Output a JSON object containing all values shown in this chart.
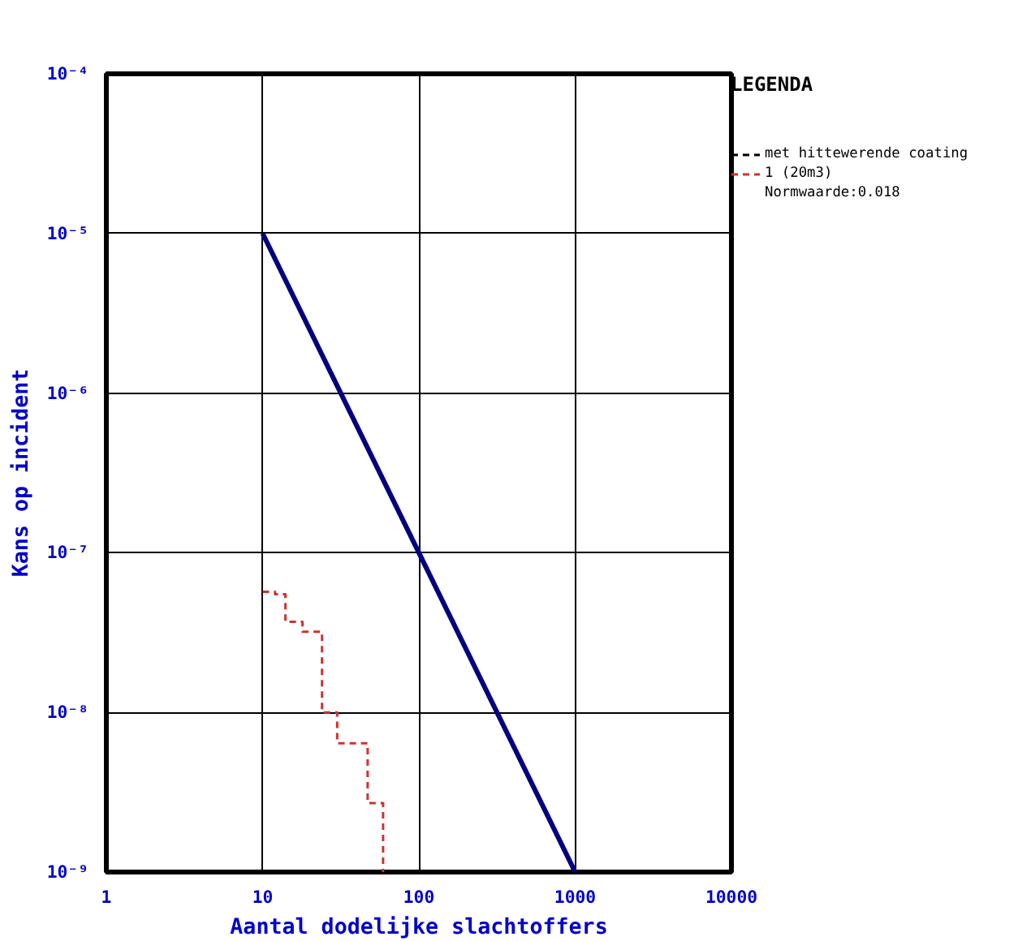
{
  "chart_data": {
    "type": "line",
    "xlabel": "Aantal dodelijke slachtoffers",
    "ylabel": "Kans op incident",
    "legend_title": "LEGENDA",
    "log": "xy",
    "grid": true,
    "legend": "top right",
    "xlim": [
      1,
      10000
    ],
    "xticks": [
      1,
      10,
      100,
      1000,
      10000
    ],
    "ylim": [
      1e-09,
      0.0001
    ],
    "yticks": [
      {
        "value": 1e-09,
        "label": "10⁻⁹"
      },
      {
        "value": 1e-08,
        "label": "10⁻⁸"
      },
      {
        "value": 1e-07,
        "label": "10⁻⁷"
      },
      {
        "value": 1e-06,
        "label": "10⁻⁶"
      },
      {
        "value": 1e-05,
        "label": "10⁻⁵"
      },
      {
        "value": 0.0001,
        "label": "10⁻⁴"
      }
    ],
    "series": [
      {
        "color": "#000080",
        "line_style": "solid",
        "x": [
          10,
          100,
          1000
        ],
        "values": [
          1e-05,
          1e-07,
          1e-09
        ]
      },
      {
        "name": "met hittewerende coating",
        "color": "#000000",
        "line_style": "dashed"
      },
      {
        "type": "step",
        "name": "1 (20m3)",
        "color": "#cc3333",
        "line_style": "dashed",
        "x": [
          10,
          12,
          14,
          18,
          24,
          30,
          47,
          59
        ],
        "values": [
          5.7e-08,
          5.5e-08,
          3.7e-08,
          3.2e-08,
          1e-08,
          6.4e-09,
          2.7e-09,
          1e-09
        ]
      }
    ],
    "annotations": [
      "Normwaarde:0.018"
    ]
  }
}
